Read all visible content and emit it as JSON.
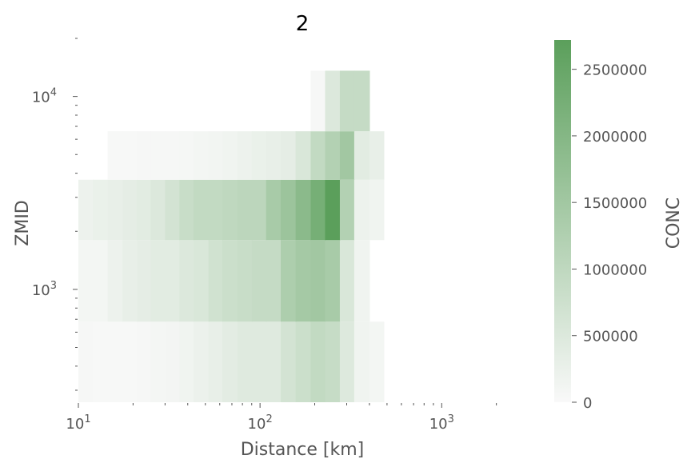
{
  "chart_data": {
    "type": "heatmap",
    "title": "2",
    "xlabel": "Distance [km]",
    "ylabel": "ZMID",
    "x_scale": "log",
    "y_scale": "log",
    "xlim": [
      10,
      2950
    ],
    "ylim": [
      260,
      20000
    ],
    "x_ticks": [
      {
        "value": 10,
        "base": "10",
        "exp": "1"
      },
      {
        "value": 100,
        "base": "10",
        "exp": "2"
      },
      {
        "value": 1000,
        "base": "10",
        "exp": "3"
      }
    ],
    "y_ticks": [
      {
        "value": 1000,
        "base": "10",
        "exp": "3"
      },
      {
        "value": 10000,
        "base": "10",
        "exp": "4"
      }
    ],
    "x_edges": [
      10,
      12,
      14.5,
      17.5,
      21,
      25,
      30,
      36,
      43,
      52,
      62,
      75,
      90,
      108,
      130,
      157,
      190,
      228,
      275,
      330,
      400,
      480
    ],
    "rows": [
      {
        "zmin": 260,
        "zmax": 680,
        "values": [
          60000,
          40000,
          40000,
          40000,
          60000,
          80000,
          110000,
          150000,
          230000,
          300000,
          380000,
          450000,
          450000,
          450000,
          650000,
          800000,
          950000,
          880000,
          480000,
          150000,
          100000
        ]
      },
      {
        "zmin": 680,
        "zmax": 1800,
        "values": [
          100000,
          100000,
          200000,
          300000,
          350000,
          400000,
          400000,
          500000,
          550000,
          700000,
          800000,
          850000,
          900000,
          900000,
          1300000,
          1450000,
          1500000,
          1400000,
          550000,
          150000,
          0
        ]
      },
      {
        "zmin": 1800,
        "zmax": 3700,
        "values": [
          200000,
          250000,
          300000,
          350000,
          400000,
          500000,
          650000,
          850000,
          950000,
          950000,
          1000000,
          1050000,
          1050000,
          1400000,
          1600000,
          1900000,
          2250000,
          2750000,
          1200000,
          200000,
          150000
        ]
      },
      {
        "zmin": 3700,
        "zmax": 6600,
        "values": [
          0,
          0,
          30000,
          40000,
          50000,
          60000,
          60000,
          70000,
          100000,
          120000,
          150000,
          200000,
          250000,
          300000,
          350000,
          550000,
          950000,
          1200000,
          1500000,
          400000,
          300000
        ]
      },
      {
        "zmin": 6600,
        "zmax": 13600,
        "values": [
          0,
          0,
          0,
          0,
          0,
          0,
          0,
          0,
          0,
          0,
          0,
          0,
          0,
          0,
          0,
          0,
          50000,
          500000,
          900000,
          900000,
          0
        ]
      }
    ],
    "colorbar": {
      "label": "CONC",
      "min": 0,
      "max": 2720000,
      "ticks": [
        {
          "value": 0,
          "label": "0"
        },
        {
          "value": 500000,
          "label": "500000"
        },
        {
          "value": 1000000,
          "label": "1000000"
        },
        {
          "value": 1500000,
          "label": "1500000"
        },
        {
          "value": 2000000,
          "label": "2000000"
        },
        {
          "value": 2500000,
          "label": "2500000"
        }
      ],
      "color_low": "#f9f9f9",
      "color_high": "#5b9f5b"
    },
    "grid": false,
    "legend": "none"
  }
}
